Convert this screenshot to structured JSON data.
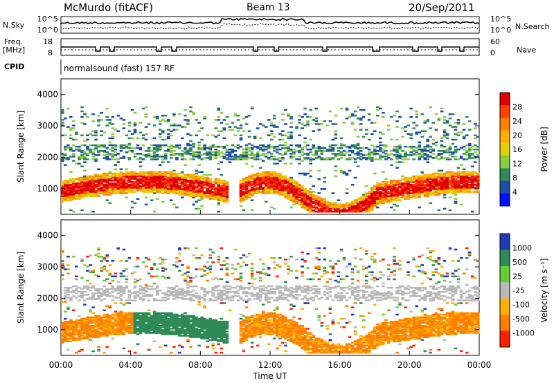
{
  "header": {
    "title": "McMurdo (fitACF)",
    "beam": "Beam 13",
    "date": "20/Sep/2011"
  },
  "summary_panel": {
    "left_labels": {
      "nsky": "N.Sky",
      "freq": "Freq.",
      "freq_unit": "[MHz]",
      "cpid": "CPID"
    },
    "right_labels": {
      "nsearch": "N.Search",
      "nave": "Nave"
    },
    "noise_ticks_left": [
      "10^5",
      "10^0"
    ],
    "noise_ticks_right": [
      "10^5",
      "10^0"
    ],
    "freq_ticks": [
      "18",
      "8"
    ],
    "nave_ticks": [
      "60",
      "0"
    ],
    "cpid_text": "normalsound (fast) 157 RF"
  },
  "chart_data": [
    {
      "type": "heatmap",
      "name": "power",
      "ylabel": "Slant Range [km]",
      "y_ticks": [
        "4000",
        "3000",
        "2000",
        "1000"
      ],
      "ylim": [
        180,
        4500
      ],
      "xlim_hours": [
        0,
        24
      ],
      "x_tick_labels": [
        "00:00",
        "04:00",
        "08:00",
        "12:00",
        "16:00",
        "20:00",
        "00:00"
      ],
      "colorbar_label": "Power [dB]",
      "colorbar_ticks": [
        "28",
        "24",
        "20",
        "16",
        "12",
        "8",
        "4"
      ],
      "colorbar_colors": [
        "#e00000",
        "#ff4000",
        "#ff8000",
        "#ffb000",
        "#e0d000",
        "#88cc44",
        "#2e8b57",
        "#1e4da8",
        "#0010ff"
      ]
    },
    {
      "type": "heatmap",
      "name": "velocity",
      "ylabel": "Slant Range [km]",
      "y_ticks": [
        "4000",
        "3000",
        "2000",
        "1000"
      ],
      "ylim": [
        180,
        4500
      ],
      "xlim_hours": [
        0,
        24
      ],
      "x_tick_labels": [
        "00:00",
        "04:00",
        "08:00",
        "12:00",
        "16:00",
        "20:00",
        "00:00"
      ],
      "xlabel": "Time UT",
      "colorbar_label": "Velocity [m s⁻¹]",
      "colorbar_ticks": [
        "1000",
        "500",
        "25",
        "-25",
        "-100",
        "-500",
        "-1000"
      ],
      "colorbar_colors": [
        "#1e3cb4",
        "#2e8b57",
        "#66cc33",
        "#b8b8b8",
        "#ffb000",
        "#ff8000",
        "#ff2000"
      ]
    }
  ]
}
